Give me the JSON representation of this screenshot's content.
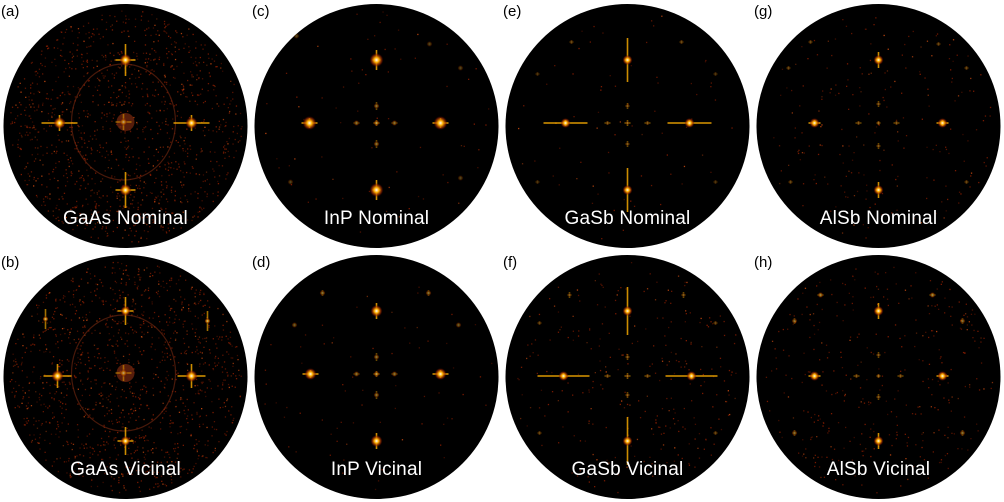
{
  "colors": {
    "disk": "#000000",
    "background": "#ffffff",
    "spot_core": "#ffffff",
    "spot_glow": "#ffb000",
    "speckle": "#8a1d00",
    "caption": "#ffffff"
  },
  "panels": [
    {
      "letter": "(a)",
      "caption": "GaAs Nominal",
      "pattern": "gaas_nominal"
    },
    {
      "letter": "(c)",
      "caption": "InP Nominal",
      "pattern": "inp_nominal"
    },
    {
      "letter": "(e)",
      "caption": "GaSb Nominal",
      "pattern": "gasb_nominal"
    },
    {
      "letter": "(g)",
      "caption": "AlSb Nominal",
      "pattern": "alsb_nominal"
    },
    {
      "letter": "(b)",
      "caption": "GaAs Vicinal",
      "pattern": "gaas_vicinal"
    },
    {
      "letter": "(d)",
      "caption": "InP Vicinal",
      "pattern": "inp_vicinal"
    },
    {
      "letter": "(f)",
      "caption": "GaSb Vicinal",
      "pattern": "gasb_vicinal"
    },
    {
      "letter": "(h)",
      "caption": "AlSb Vicinal",
      "pattern": "alsb_vicinal"
    }
  ]
}
